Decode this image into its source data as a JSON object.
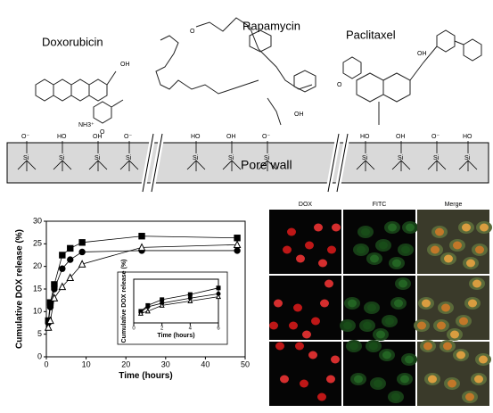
{
  "diagram": {
    "molecules": [
      "Doxorubicin",
      "Rapamycin",
      "Paclitaxel"
    ],
    "wall_label": "Pore wall",
    "surface": {
      "anion": "O⁻",
      "silanol_left": "HO",
      "silanol_right": "OH",
      "silicon": "Si"
    },
    "atoms": [
      "OH",
      "O",
      "NH3⁺",
      "O",
      "OH",
      "OH",
      "O"
    ]
  },
  "chart_data": [
    {
      "type": "line",
      "xlabel": "Time (hours)",
      "ylabel": "Cumulative DOX release (%)",
      "xlim": [
        0,
        50
      ],
      "xticks": [
        0,
        10,
        20,
        30,
        40,
        50
      ],
      "ylim": [
        0,
        30
      ],
      "yticks": [
        0,
        5,
        10,
        15,
        20,
        25,
        30
      ],
      "x": [
        0.5,
        1,
        2,
        4,
        6,
        9,
        24,
        48
      ],
      "series": [
        {
          "marker": "square",
          "color": "#000",
          "values": [
            8,
            12,
            16,
            22.5,
            24,
            25.3,
            26.7,
            26.3
          ]
        },
        {
          "marker": "circle",
          "color": "#000",
          "values": [
            7.5,
            11,
            15,
            19.5,
            21.5,
            23.2,
            23.5,
            23.5
          ]
        },
        {
          "marker": "triangle",
          "color": "#000",
          "values": [
            6.5,
            8,
            13,
            15.5,
            17.5,
            20.5,
            24.2,
            24.8
          ]
        }
      ]
    },
    {
      "type": "line",
      "xlabel": "Time (hours)",
      "ylabel": "Cumulative DOX release (%)",
      "xlim": [
        0,
        6
      ],
      "xticks": [
        0,
        2,
        4,
        6
      ],
      "ylim": [
        0,
        30
      ],
      "x": [
        0.5,
        1,
        2,
        4,
        6
      ],
      "series": [
        {
          "marker": "square",
          "color": "#000",
          "values": [
            8,
            12,
            16,
            19.5,
            24
          ]
        },
        {
          "marker": "circle",
          "color": "#000",
          "values": [
            7.5,
            11,
            13.5,
            17,
            20
          ]
        },
        {
          "marker": "triangle",
          "color": "#000",
          "values": [
            6.5,
            8,
            12,
            15,
            18
          ]
        }
      ]
    }
  ],
  "micrographs": {
    "columns": [
      "DOX",
      "FITC",
      "Merge"
    ]
  }
}
